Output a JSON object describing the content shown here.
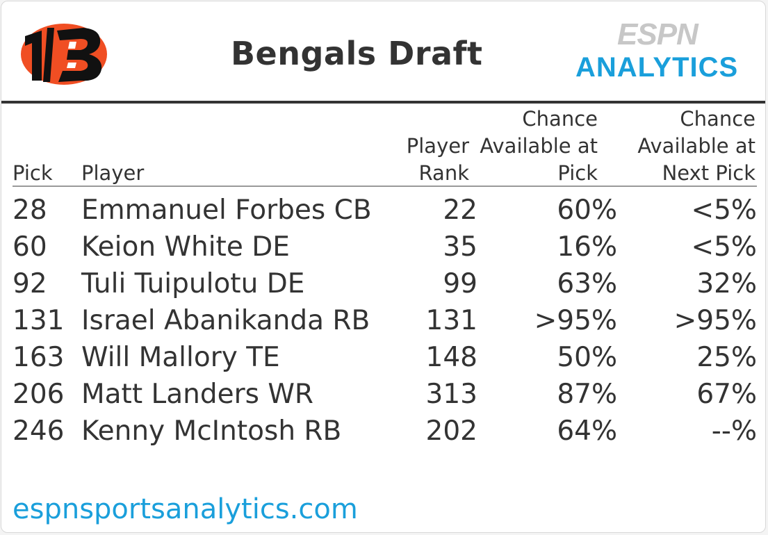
{
  "header": {
    "title": "Bengals Draft",
    "brand_top": "ESPN",
    "brand_bottom": "ANALYTICS",
    "logo_icon": "bengals-b-logo-icon"
  },
  "columns": {
    "pick": "Pick",
    "player": "Player",
    "rank_line1": "Player",
    "rank_line2": "Rank",
    "avail_line1": "Chance",
    "avail_line2": "Available at",
    "avail_line3": "Pick",
    "next_line1": "Chance",
    "next_line2": "Available at",
    "next_line3": "Next Pick"
  },
  "rows": [
    {
      "pick": "28",
      "player": "Emmanuel Forbes CB",
      "rank": "22",
      "avail": "60%",
      "next": "<5%"
    },
    {
      "pick": "60",
      "player": "Keion White DE",
      "rank": "35",
      "avail": "16%",
      "next": "<5%"
    },
    {
      "pick": "92",
      "player": "Tuli Tuipulotu DE",
      "rank": "99",
      "avail": "63%",
      "next": "32%"
    },
    {
      "pick": "131",
      "player": "Israel Abanikanda RB",
      "rank": "131",
      "avail": ">95%",
      "next": ">95%"
    },
    {
      "pick": "163",
      "player": "Will Mallory TE",
      "rank": "148",
      "avail": "50%",
      "next": "25%"
    },
    {
      "pick": "206",
      "player": "Matt Landers WR",
      "rank": "313",
      "avail": "87%",
      "next": "67%"
    },
    {
      "pick": "246",
      "player": "Kenny McIntosh RB",
      "rank": "202",
      "avail": "64%",
      "next": "--%"
    }
  ],
  "footer": {
    "link": "espnsportsanalytics.com"
  },
  "colors": {
    "accent": "#1a9fdb",
    "logo_orange": "#f04e23",
    "text": "#333333"
  }
}
